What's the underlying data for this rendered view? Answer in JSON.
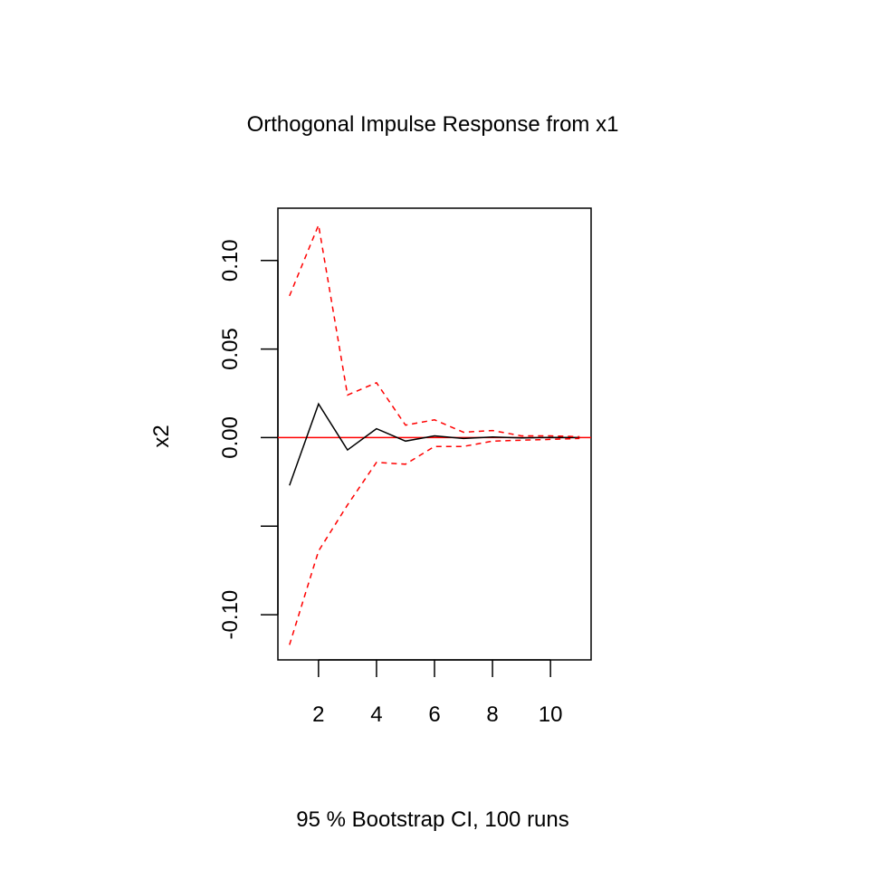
{
  "chart_data": {
    "type": "line",
    "title": "Orthogonal Impulse Response from x1",
    "xlabel": "95 % Bootstrap CI,  100 runs",
    "ylabel": "x2",
    "x": [
      1,
      2,
      3,
      4,
      5,
      6,
      7,
      8,
      9,
      10,
      11
    ],
    "xlim": [
      0.6,
      11.4
    ],
    "ylim": [
      -0.1255,
      0.1295
    ],
    "x_ticks": [
      2,
      4,
      6,
      8,
      10
    ],
    "y_ticks": [
      -0.1,
      -0.05,
      0.0,
      0.05,
      0.1
    ],
    "y_tick_labels": [
      "-0.10",
      "",
      "0.00",
      "0.05",
      "0.10"
    ],
    "x_tick_labels": [
      "2",
      "4",
      "6",
      "8",
      "10"
    ],
    "series": [
      {
        "role": "response",
        "color": "#000000",
        "style": "solid",
        "values": [
          -0.027,
          0.019,
          -0.007,
          0.005,
          -0.002,
          0.001,
          -0.0005,
          0.0003,
          -0.0002,
          0.0001,
          0.0
        ]
      },
      {
        "role": "upper",
        "color": "#ff0000",
        "style": "dashed",
        "values": [
          0.08,
          0.12,
          0.024,
          0.031,
          0.007,
          0.01,
          0.003,
          0.004,
          0.001,
          0.001,
          0.0005
        ]
      },
      {
        "role": "lower",
        "color": "#ff0000",
        "style": "dashed",
        "values": [
          -0.117,
          -0.064,
          -0.038,
          -0.014,
          -0.015,
          -0.005,
          -0.005,
          -0.002,
          -0.0015,
          -0.001,
          -0.0005
        ]
      }
    ],
    "reference_line": {
      "y": 0,
      "color": "#ff0000"
    },
    "grid": false,
    "legend": "none"
  }
}
